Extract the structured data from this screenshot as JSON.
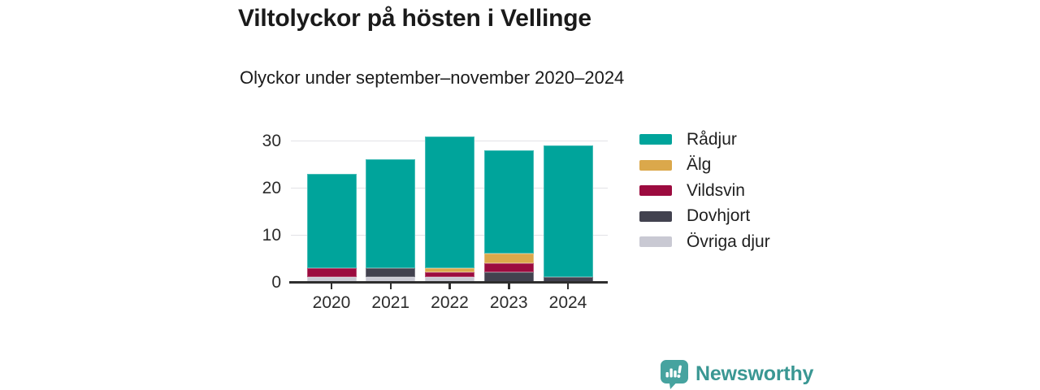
{
  "title": "Viltolyckor på hösten i Vellinge",
  "subtitle": "Olyckor under september–november 2020–2024",
  "footer": {
    "brand": "Newsworthy"
  },
  "colors": {
    "accent_teal": "#00a49b",
    "gold": "#dba84b",
    "crimson": "#9c0b3f",
    "slate": "#42424f",
    "light_gray": "#c9c9d3",
    "gridline": "#e2e2e6",
    "axis": "#2e2e2e",
    "brand_teal": "#46a39f",
    "brand_text": "#3a9793"
  },
  "chart_data": {
    "type": "bar",
    "stacked": true,
    "title": "Viltolyckor på hösten i Vellinge",
    "subtitle": "Olyckor under september–november 2020–2024",
    "categories": [
      "2020",
      "2021",
      "2022",
      "2023",
      "2024"
    ],
    "series": [
      {
        "name": "Rådjur",
        "color": "#00a49b",
        "values": [
          20,
          23,
          28,
          22,
          28
        ]
      },
      {
        "name": "Älg",
        "color": "#dba84b",
        "values": [
          0,
          0,
          1,
          2,
          0
        ]
      },
      {
        "name": "Vildsvin",
        "color": "#9c0b3f",
        "values": [
          2,
          0,
          1,
          2,
          0
        ]
      },
      {
        "name": "Dovhjort",
        "color": "#42424f",
        "values": [
          0,
          2,
          0,
          2,
          1
        ]
      },
      {
        "name": "Övriga djur",
        "color": "#c9c9d3",
        "values": [
          1,
          1,
          1,
          0,
          0
        ]
      }
    ],
    "totals": [
      23,
      26,
      31,
      28,
      29
    ],
    "stack_order_bottom_to_top": [
      "Övriga djur",
      "Dovhjort",
      "Vildsvin",
      "Älg",
      "Rådjur"
    ],
    "xlabel": "",
    "ylabel": "",
    "ylim": [
      0,
      32
    ],
    "yticks": [
      0,
      10,
      20,
      30
    ],
    "grid": true,
    "legend_position": "right"
  }
}
